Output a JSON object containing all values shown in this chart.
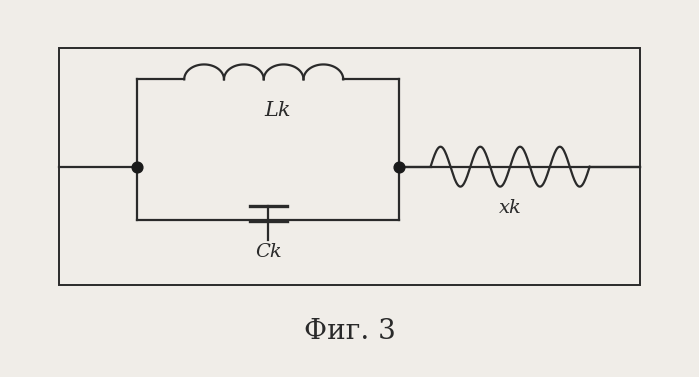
{
  "bg_color": "#f0ede8",
  "box_color": "#2a2a2a",
  "line_color": "#2a2a2a",
  "dot_color": "#1a1a1a",
  "title": "Фиг. 3",
  "title_fontsize": 20,
  "label_Lk": "Lk",
  "label_Ck": "Ck",
  "label_xk": "xk",
  "label_fontsize": 13,
  "fig_width": 6.99,
  "fig_height": 3.77,
  "dpi": 100
}
